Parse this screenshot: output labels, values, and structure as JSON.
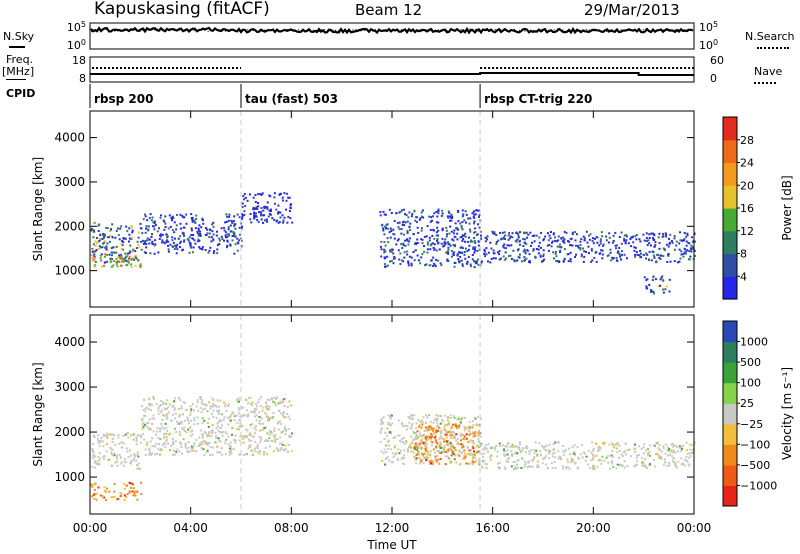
{
  "header": {
    "station": "Kapuskasing (fitACF)",
    "beam": "Beam 12",
    "date": "29/Mar/2013"
  },
  "strip_labels": {
    "nsky": "N.Sky",
    "nsky_hi": "10^5",
    "nsky_lo": "10^0",
    "freq": "Freq.",
    "freq_unit": "[MHz]",
    "freq_hi": "18",
    "freq_lo": "8",
    "cpid": "CPID",
    "nsearch": "N.Search",
    "nsearch_hi": "10^5",
    "nsearch_lo": "10^0",
    "nave": "Nave",
    "nave_hi": "60",
    "nave_lo": "0"
  },
  "cpid_segments": [
    {
      "name": "rbsp 200",
      "start": "00:00"
    },
    {
      "name": "tau (fast) 503",
      "start": "06:00"
    },
    {
      "name": "rbsp CT-trig 220",
      "start": "15:30"
    }
  ],
  "chart_data": [
    {
      "type": "heatmap",
      "panel": "power",
      "ylabel": "Slant Range [km]",
      "yticks": [
        "1000",
        "2000",
        "3000",
        "4000"
      ],
      "ylim": [
        180,
        4600
      ],
      "xlim_hours": [
        0,
        24
      ],
      "xticks": [
        "00:00",
        "04:00",
        "08:00",
        "12:00",
        "16:00",
        "20:00",
        "00:00"
      ],
      "colorbar": {
        "label": "Power [dB]",
        "ticks": [
          "4",
          "8",
          "12",
          "16",
          "20",
          "24",
          "28"
        ],
        "colors": [
          "#2626ea",
          "#2e4fa6",
          "#2f7d62",
          "#48aa36",
          "#e6c12c",
          "#f29a1e",
          "#ef6a19",
          "#e52a1e"
        ]
      },
      "echo_regions": [
        {
          "hours": [
            0.0,
            2.0
          ],
          "range_km": [
            1200,
            2100
          ],
          "level": "medium"
        },
        {
          "hours": [
            0.0,
            2.0
          ],
          "range_km": [
            1100,
            1450
          ],
          "level": "high"
        },
        {
          "hours": [
            2.0,
            6.0
          ],
          "range_km": [
            1400,
            2300
          ],
          "level": "low-medium"
        },
        {
          "hours": [
            6.0,
            8.0
          ],
          "range_km": [
            2100,
            2800
          ],
          "level": "low"
        },
        {
          "hours": [
            11.5,
            15.5
          ],
          "range_km": [
            1100,
            2400
          ],
          "level": "low-medium"
        },
        {
          "hours": [
            15.5,
            24.0
          ],
          "range_km": [
            1200,
            1900
          ],
          "level": "low-medium"
        },
        {
          "hours": [
            22.0,
            23.0
          ],
          "range_km": [
            500,
            900
          ],
          "level": "medium"
        }
      ]
    },
    {
      "type": "heatmap",
      "panel": "velocity",
      "ylabel": "Slant Range [km]",
      "yticks": [
        "1000",
        "2000",
        "3000",
        "4000"
      ],
      "ylim": [
        180,
        4600
      ],
      "xlim_hours": [
        0,
        24
      ],
      "xticks": [
        "00:00",
        "04:00",
        "08:00",
        "12:00",
        "16:00",
        "20:00",
        "00:00"
      ],
      "xlabel": "Time UT",
      "colorbar": {
        "label": "Velocity [m s⁻¹]",
        "ticks": [
          "1000",
          "500",
          "100",
          "25",
          "−25",
          "−100",
          "−500",
          "−1000"
        ],
        "colors": [
          "#2a49b5",
          "#2e7f5d",
          "#3aa43a",
          "#86d24a",
          "#c8c8c4",
          "#f3be3a",
          "#f08a1c",
          "#ef5a18",
          "#e8231a"
        ]
      },
      "echo_regions": [
        {
          "hours": [
            0.0,
            2.0
          ],
          "range_km": [
            1200,
            2000
          ],
          "level": "ground-scatter"
        },
        {
          "hours": [
            0.0,
            2.0
          ],
          "range_km": [
            500,
            900
          ],
          "level": "negative"
        },
        {
          "hours": [
            2.0,
            8.0
          ],
          "range_km": [
            1500,
            2800
          ],
          "level": "ground-scatter"
        },
        {
          "hours": [
            11.5,
            15.5
          ],
          "range_km": [
            1300,
            2400
          ],
          "level": "ground-scatter"
        },
        {
          "hours": [
            12.8,
            15.5
          ],
          "range_km": [
            1300,
            2200
          ],
          "level": "negative"
        },
        {
          "hours": [
            15.5,
            24.0
          ],
          "range_km": [
            1200,
            1800
          ],
          "level": "ground-scatter"
        }
      ]
    }
  ]
}
